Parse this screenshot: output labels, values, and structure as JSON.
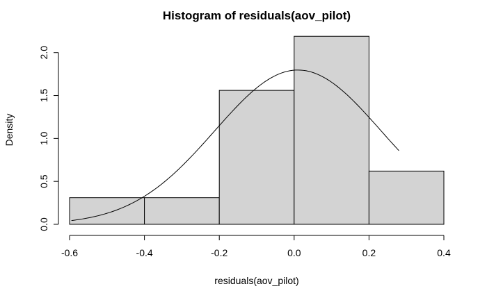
{
  "chart_data": {
    "type": "bar",
    "title": "Histogram of residuals(aov_pilot)",
    "xlabel": "residuals(aov_pilot)",
    "ylabel": "Density",
    "xlim": [
      -0.6,
      0.4
    ],
    "ylim": [
      0,
      2.2
    ],
    "x_ticks": [
      "-0.6",
      "-0.4",
      "-0.2",
      "0.0",
      "0.2",
      "0.4"
    ],
    "y_ticks": [
      "0.0",
      "0.5",
      "1.0",
      "1.5",
      "2.0"
    ],
    "bins": [
      {
        "from": -0.6,
        "to": -0.4,
        "density": 0.31
      },
      {
        "from": -0.4,
        "to": -0.2,
        "density": 0.31
      },
      {
        "from": -0.2,
        "to": 0.0,
        "density": 1.56
      },
      {
        "from": 0.0,
        "to": 0.2,
        "density": 2.19
      },
      {
        "from": 0.2,
        "to": 0.4,
        "density": 0.62
      }
    ],
    "density_curve": {
      "type": "normal",
      "mean": 0.01,
      "sd": 0.222,
      "x_range": [
        -0.595,
        0.28
      ]
    }
  }
}
